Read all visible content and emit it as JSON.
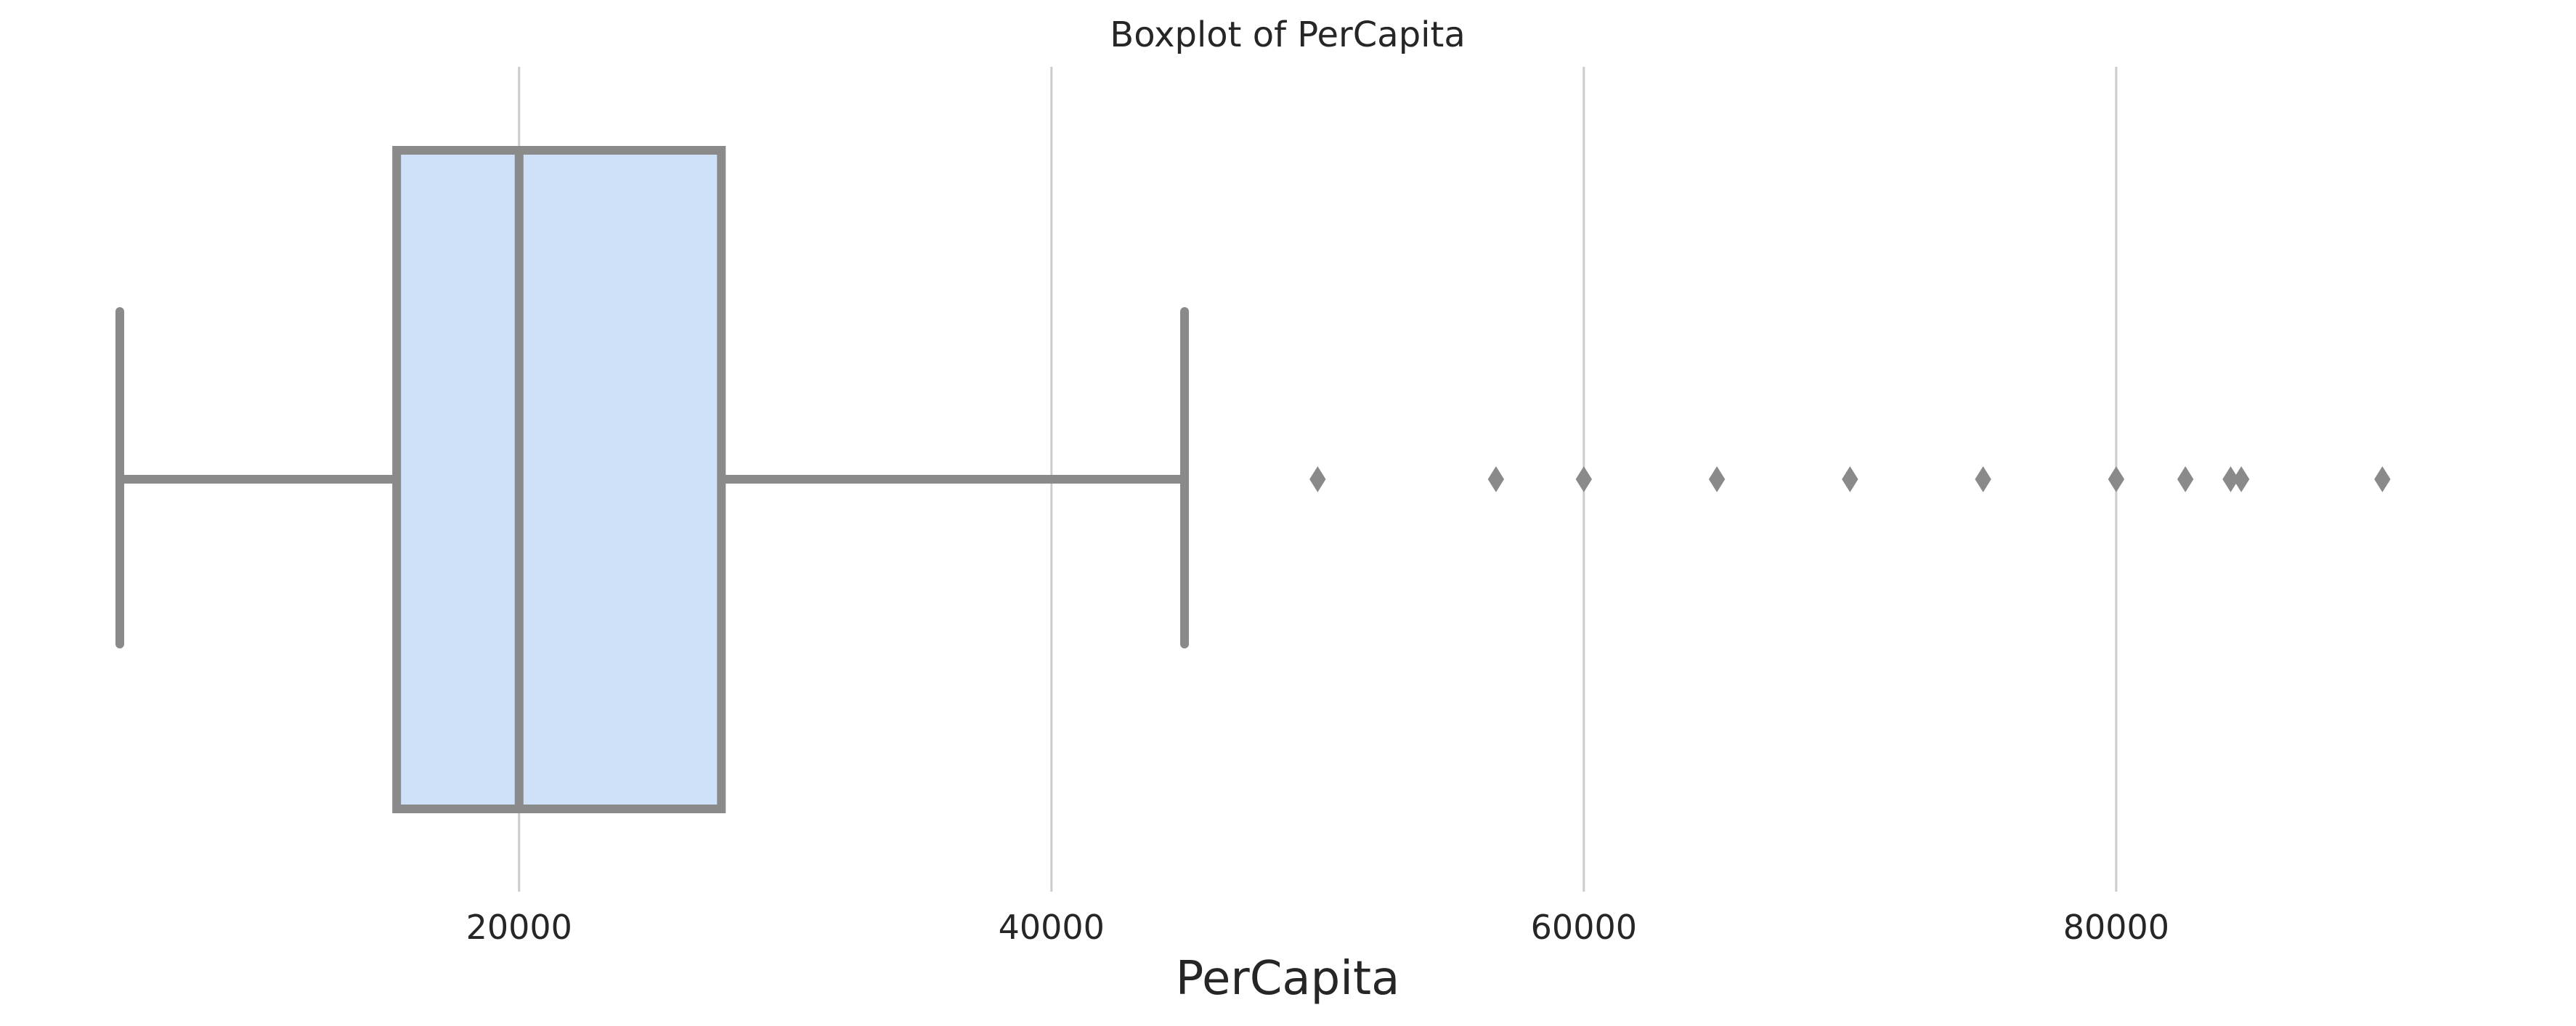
{
  "chart_data": {
    "type": "boxplot",
    "title": "Boxplot of PerCapita",
    "xlabel": "PerCapita",
    "ylabel": "",
    "xlim": [
      3500,
      94000
    ],
    "xticks": [
      20000,
      40000,
      60000,
      80000
    ],
    "grid": "vertical",
    "orientation": "horizontal",
    "box": {
      "whisker_low": 5000,
      "q1": 15400,
      "median": 20000,
      "q3": 27600,
      "whisker_high": 45000
    },
    "outliers": [
      50000,
      56700,
      60000,
      65000,
      70000,
      75000,
      80000,
      82600,
      84300,
      84700,
      90000
    ],
    "colors": {
      "box_fill": "#cfe1f8",
      "line": "#8a8a8a",
      "grid": "#cccccc"
    }
  }
}
